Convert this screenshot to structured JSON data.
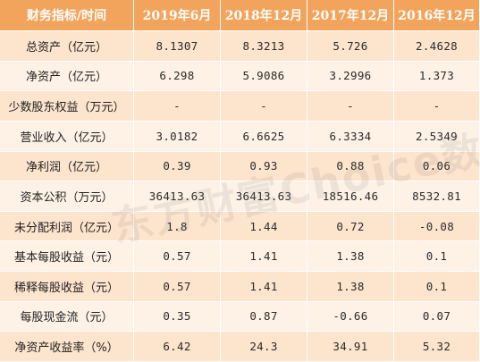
{
  "table": {
    "headers": [
      "财务指标/时间",
      "2019年6月",
      "2018年12月",
      "2017年12月",
      "2016年12月"
    ],
    "rows": [
      {
        "label": "总资产（亿元）",
        "values": [
          "8.1307",
          "8.3213",
          "5.726",
          "2.4628"
        ]
      },
      {
        "label": "净资产（亿元）",
        "values": [
          "6.298",
          "5.9086",
          "3.2996",
          "1.373"
        ]
      },
      {
        "label": "少数股东权益（万元）",
        "values": [
          "-",
          "-",
          "-",
          "-"
        ]
      },
      {
        "label": "营业收入（亿元）",
        "values": [
          "3.0182",
          "6.6625",
          "6.3334",
          "2.5349"
        ]
      },
      {
        "label": "净利润（亿元）",
        "values": [
          "0.39",
          "0.93",
          "0.88",
          "0.06"
        ]
      },
      {
        "label": "资本公积（万元）",
        "values": [
          "36413.63",
          "36413.63",
          "18516.46",
          "8532.81"
        ]
      },
      {
        "label": "未分配利润（亿元）",
        "values": [
          "1.8",
          "1.44",
          "0.72",
          "-0.08"
        ]
      },
      {
        "label": "基本每股收益（元）",
        "values": [
          "0.57",
          "1.41",
          "1.38",
          "0.1"
        ]
      },
      {
        "label": "稀释每股收益（元）",
        "values": [
          "0.57",
          "1.41",
          "1.38",
          "0.1"
        ]
      },
      {
        "label": "每股现金流（元）",
        "values": [
          "0.35",
          "0.87",
          "-0.66",
          "0.07"
        ]
      },
      {
        "label": "净资产收益率（%）",
        "values": [
          "6.42",
          "24.3",
          "34.91",
          "5.32"
        ]
      }
    ]
  },
  "watermark": "东方财富Choice数据"
}
